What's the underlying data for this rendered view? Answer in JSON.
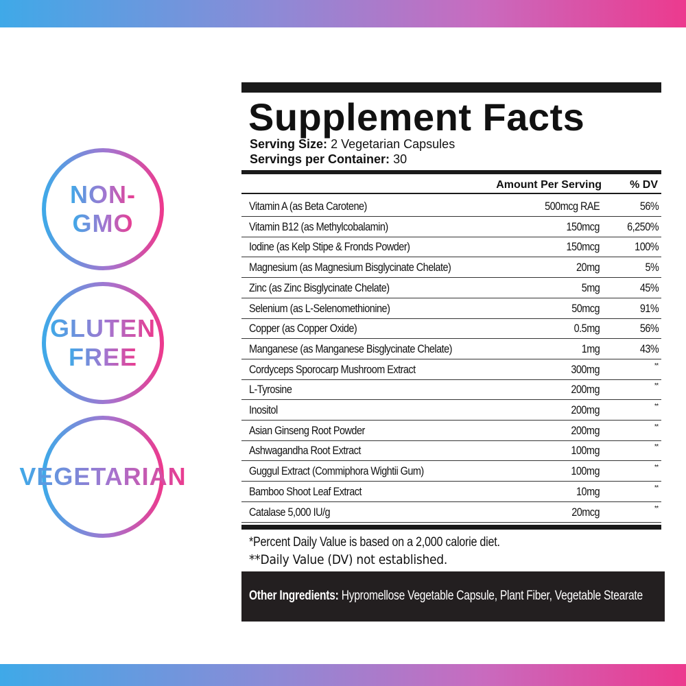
{
  "badges": [
    [
      "NON-",
      "GMO"
    ],
    [
      "GLUTEN",
      "FREE"
    ],
    [
      "VEGETARIAN"
    ]
  ],
  "facts": {
    "title": "Supplement Facts",
    "serving_size_label": "Serving Size:",
    "serving_size": "2 Vegetarian Capsules",
    "servings_label": "Servings per Container:",
    "servings": "30",
    "columns": [
      "Amount Per Serving",
      "% DV"
    ],
    "rows": [
      [
        "Vitamin A (as Beta Carotene)",
        "500mcg RAE",
        "56%"
      ],
      [
        "Vitamin B12 (as Methylcobalamin)",
        "150mcg",
        "6,250%"
      ],
      [
        "Iodine (as Kelp Stipe & Fronds Powder)",
        "150mcg",
        "100%"
      ],
      [
        "Magnesium (as Magnesium Bisglycinate Chelate)",
        "20mg",
        "5%"
      ],
      [
        "Zinc (as Zinc Bisglycinate Chelate)",
        "5mg",
        "45%"
      ],
      [
        "Selenium (as L-Selenomethionine)",
        "50mcg",
        "91%"
      ],
      [
        "Copper (as Copper Oxide)",
        "0.5mg",
        "56%"
      ],
      [
        "Manganese (as Manganese Bisglycinate Chelate)",
        "1mg",
        "43%"
      ],
      [
        "Cordyceps Sporocarp Mushroom Extract",
        "300mg",
        "**"
      ],
      [
        "L-Tyrosine",
        "200mg",
        "**"
      ],
      [
        "Inositol",
        "200mg",
        "**"
      ],
      [
        "Asian Ginseng Root Powder",
        "200mg",
        "**"
      ],
      [
        "Ashwagandha Root Extract",
        "100mg",
        "**"
      ],
      [
        "Guggul Extract (Commiphora Wightii Gum)",
        "100mg",
        "**"
      ],
      [
        "Bamboo Shoot Leaf Extract",
        "10mg",
        "**"
      ],
      [
        "Catalase 5,000 IU/g",
        "20mcg",
        "**"
      ]
    ],
    "footnotes": [
      "*Percent Daily Value is based on a 2,000 calorie diet.",
      "**Daily Value (DV) not established."
    ],
    "other_ingredients_label": "Other Ingredients:",
    "other_ingredients": "Hypromellose Vegetable Capsule, Plant Fiber, Vegetable Stearate"
  }
}
